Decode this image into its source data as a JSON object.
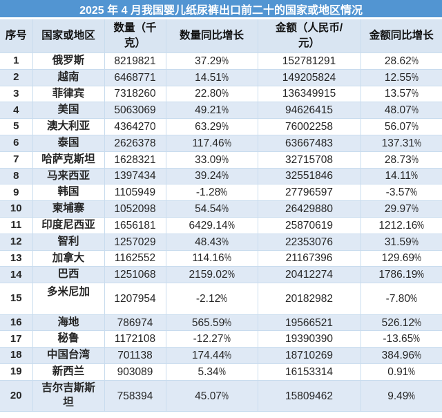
{
  "title": "2025 年 4 月我国婴儿纸尿裤出口前二十的国家或地区情况",
  "columns": [
    "序号",
    "国家或地区",
    "数量（千\n克）",
    "数量同比增长",
    "金额（人民币/\n元）",
    "金额同比增长"
  ],
  "rows": [
    {
      "no": "1",
      "country": "俄罗斯",
      "qty": "8219821",
      "qty_yoy": "37.29%",
      "amount": "152781291",
      "amount_yoy": "28.62%"
    },
    {
      "no": "2",
      "country": "越南",
      "qty": "6468771",
      "qty_yoy": "14.51%",
      "amount": "149205824",
      "amount_yoy": "12.55%"
    },
    {
      "no": "3",
      "country": "菲律宾",
      "qty": "7318260",
      "qty_yoy": "22.80%",
      "amount": "136349915",
      "amount_yoy": "13.57%"
    },
    {
      "no": "4",
      "country": "美国",
      "qty": "5063069",
      "qty_yoy": "49.21%",
      "amount": "94626415",
      "amount_yoy": "48.07%"
    },
    {
      "no": "5",
      "country": "澳大利亚",
      "qty": "4364270",
      "qty_yoy": "63.29%",
      "amount": "76002258",
      "amount_yoy": "56.07%"
    },
    {
      "no": "6",
      "country": "泰国",
      "qty": "2626378",
      "qty_yoy": "117.46%",
      "amount": "63667483",
      "amount_yoy": "137.31%"
    },
    {
      "no": "7",
      "country": "哈萨克斯坦",
      "qty": "1628321",
      "qty_yoy": "33.09%",
      "amount": "32715708",
      "amount_yoy": "28.73%"
    },
    {
      "no": "8",
      "country": "马来西亚",
      "qty": "1397434",
      "qty_yoy": "39.24%",
      "amount": "32551846",
      "amount_yoy": "14.11%"
    },
    {
      "no": "9",
      "country": "韩国",
      "qty": "1105949",
      "qty_yoy": "-1.28%",
      "amount": "27796597",
      "amount_yoy": "-3.57%"
    },
    {
      "no": "10",
      "country": "柬埔寨",
      "qty": "1052098",
      "qty_yoy": "54.54%",
      "amount": "26429880",
      "amount_yoy": "29.97%"
    },
    {
      "no": "11",
      "country": "印度尼西亚",
      "qty": "1656181",
      "qty_yoy": "6429.14%",
      "amount": "25870619",
      "amount_yoy": "1212.16%"
    },
    {
      "no": "12",
      "country": "智利",
      "qty": "1257029",
      "qty_yoy": "48.43%",
      "amount": "22353076",
      "amount_yoy": "31.59%"
    },
    {
      "no": "13",
      "country": "加拿大",
      "qty": "1162552",
      "qty_yoy": "114.16%",
      "amount": "21167396",
      "amount_yoy": "129.69%"
    },
    {
      "no": "14",
      "country": "巴西",
      "qty": "1251068",
      "qty_yoy": "2159.02%",
      "amount": "20412274",
      "amount_yoy": "1786.19%"
    },
    {
      "no": "15",
      "country": "多米尼加",
      "qty": "1207954",
      "qty_yoy": "-2.12%",
      "amount": "20182982",
      "amount_yoy": "-7.80%"
    },
    {
      "no": "16",
      "country": "海地",
      "qty": "786974",
      "qty_yoy": "565.59%",
      "amount": "19566521",
      "amount_yoy": "526.12%"
    },
    {
      "no": "17",
      "country": "秘鲁",
      "qty": "1172108",
      "qty_yoy": "-12.27%",
      "amount": "19390390",
      "amount_yoy": "-13.65%"
    },
    {
      "no": "18",
      "country": "中国台湾",
      "qty": "701138",
      "qty_yoy": "174.44%",
      "amount": "18710269",
      "amount_yoy": "384.96%"
    },
    {
      "no": "19",
      "country": "新西兰",
      "qty": "903089",
      "qty_yoy": "5.34%",
      "amount": "16153314",
      "amount_yoy": "0.91%"
    },
    {
      "no": "20",
      "country": "吉尔吉斯斯坦",
      "qty": "758394",
      "qty_yoy": "45.07%",
      "amount": "15809462",
      "amount_yoy": "9.49%"
    }
  ],
  "colors": {
    "title_bg": "#5295D2",
    "title_text": "#FFFFFF",
    "header_bg": "#D9E5F2",
    "band_bg": "#DFE9F5",
    "grid_line": "#C9DCEE",
    "text": "#262626"
  }
}
